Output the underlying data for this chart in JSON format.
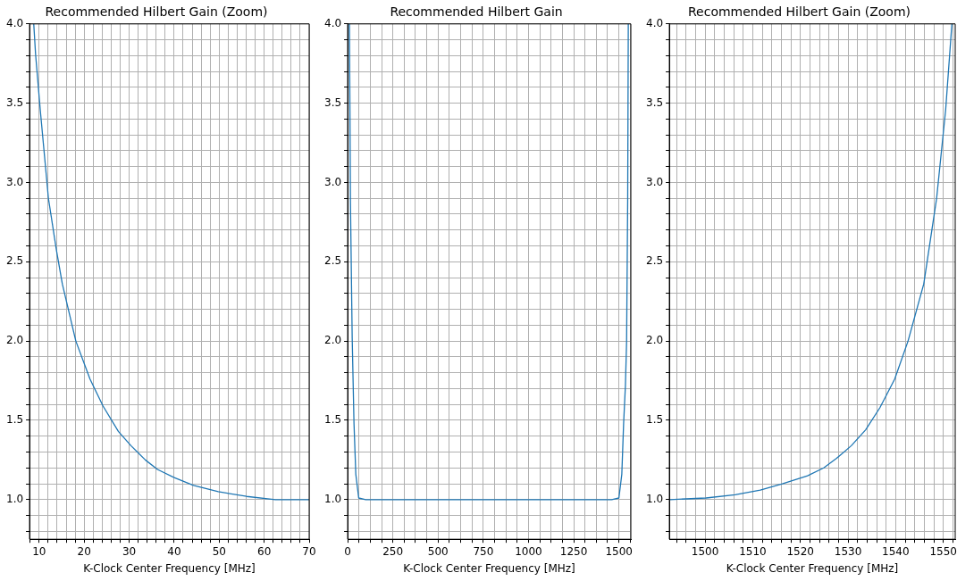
{
  "chart_data": [
    {
      "type": "line",
      "title": "Recommended Hilbert Gain (Zoom)",
      "xlabel": "K-Clock Center Frequency [MHz]",
      "color": "#1f77b4",
      "grid": true,
      "legend": false,
      "marker": "none",
      "line_style": "solid",
      "x": [
        8.8,
        9.2,
        10.24,
        12.06,
        13.8,
        15.15,
        18.15,
        21.3,
        24.2,
        27.6,
        30.4,
        33.6,
        36.3,
        39.9,
        44.3,
        49.8,
        56.1,
        62.5,
        70
      ],
      "values": [
        4.0,
        3.81,
        3.46,
        2.9,
        2.58,
        2.36,
        2.0,
        1.76,
        1.59,
        1.43,
        1.34,
        1.25,
        1.19,
        1.14,
        1.09,
        1.05,
        1.02,
        1.0,
        1.0
      ],
      "xlim": [
        7.87,
        70
      ],
      "xticks": [
        {
          "value": 8,
          "label": null
        },
        10,
        {
          "value": 12,
          "label": null
        },
        {
          "value": 14,
          "label": null
        },
        {
          "value": 16,
          "label": null
        },
        {
          "value": 18,
          "label": null
        },
        20,
        {
          "value": 22,
          "label": null
        },
        {
          "value": 24,
          "label": null
        },
        {
          "value": 26,
          "label": null
        },
        {
          "value": 28,
          "label": null
        },
        30,
        {
          "value": 32,
          "label": null
        },
        {
          "value": 34,
          "label": null
        },
        {
          "value": 36,
          "label": null
        },
        {
          "value": 38,
          "label": null
        },
        40,
        {
          "value": 42,
          "label": null
        },
        {
          "value": 44,
          "label": null
        },
        {
          "value": 46,
          "label": null
        },
        {
          "value": 48,
          "label": null
        },
        50,
        {
          "value": 52,
          "label": null
        },
        {
          "value": 54,
          "label": null
        },
        {
          "value": 56,
          "label": null
        },
        {
          "value": 58,
          "label": null
        },
        60,
        {
          "value": 62,
          "label": null
        },
        {
          "value": 64,
          "label": null
        },
        {
          "value": 66,
          "label": null
        },
        {
          "value": 68,
          "label": null
        },
        70
      ],
      "ylim": [
        0.75,
        4.0
      ],
      "yticks": [
        {
          "value": 0.8,
          "label": null
        },
        {
          "value": 0.9,
          "label": null
        },
        {
          "value": 1.0,
          "label": "1.0"
        },
        {
          "value": 1.1,
          "label": null
        },
        {
          "value": 1.2,
          "label": null
        },
        {
          "value": 1.3,
          "label": null
        },
        {
          "value": 1.4,
          "label": null
        },
        1.5,
        {
          "value": 1.6,
          "label": null
        },
        {
          "value": 1.7,
          "label": null
        },
        {
          "value": 1.8,
          "label": null
        },
        {
          "value": 1.9,
          "label": null
        },
        {
          "value": 2.0,
          "label": "2.0"
        },
        {
          "value": 2.1,
          "label": null
        },
        {
          "value": 2.2,
          "label": null
        },
        {
          "value": 2.3,
          "label": null
        },
        {
          "value": 2.4,
          "label": null
        },
        2.5,
        {
          "value": 2.6,
          "label": null
        },
        {
          "value": 2.7,
          "label": null
        },
        {
          "value": 2.8,
          "label": null
        },
        {
          "value": 2.9,
          "label": null
        },
        {
          "value": 3.0,
          "label": "3.0"
        },
        {
          "value": 3.1,
          "label": null
        },
        {
          "value": 3.2,
          "label": null
        },
        {
          "value": 3.3,
          "label": null
        },
        {
          "value": 3.4,
          "label": null
        },
        3.5,
        {
          "value": 3.6,
          "label": null
        },
        {
          "value": 3.7,
          "label": null
        },
        {
          "value": 3.8,
          "label": null
        },
        {
          "value": 3.9,
          "label": null
        },
        {
          "value": 4.0,
          "label": "4.0"
        }
      ]
    },
    {
      "type": "line",
      "title": "Recommended Hilbert Gain",
      "xlabel": "K-Clock Center Frequency [MHz]",
      "color": "#1f77b4",
      "grid": true,
      "legend": false,
      "marker": "none",
      "line_style": "solid",
      "x": [
        9.8,
        15.4,
        25,
        35,
        45,
        61,
        100,
        140,
        180,
        220,
        260,
        300,
        340,
        380,
        420,
        460,
        500,
        540,
        580,
        620,
        660,
        700,
        740,
        780,
        820,
        860,
        900,
        940,
        980,
        1020,
        1060,
        1100,
        1140,
        1180,
        1220,
        1260,
        1300,
        1340,
        1380,
        1420,
        1460,
        1500,
        1516,
        1526,
        1536,
        1542.6,
        1548.6,
        1551.8
      ],
      "values": [
        4.0,
        2.88,
        2.02,
        1.48,
        1.16,
        1.01,
        1.0,
        1.0,
        1.0,
        1.0,
        1.0,
        1.0,
        1.0,
        1.0,
        1.0,
        1.0,
        1.0,
        1.0,
        1.0,
        1.0,
        1.0,
        1.0,
        1.0,
        1.0,
        1.0,
        1.0,
        1.0,
        1.0,
        1.0,
        1.0,
        1.0,
        1.0,
        1.0,
        1.0,
        1.0,
        1.0,
        1.0,
        1.0,
        1.0,
        1.0,
        1.0,
        1.01,
        1.16,
        1.48,
        1.72,
        2.0,
        2.9,
        4.0
      ],
      "xlim": [
        0,
        1566
      ],
      "xticks": [
        0,
        {
          "value": 62.5,
          "label": null
        },
        {
          "value": 125,
          "label": null
        },
        {
          "value": 187.5,
          "label": null
        },
        250,
        {
          "value": 312.5,
          "label": null
        },
        {
          "value": 375,
          "label": null
        },
        {
          "value": 437.5,
          "label": null
        },
        500,
        {
          "value": 562.5,
          "label": null
        },
        {
          "value": 625,
          "label": null
        },
        {
          "value": 687.5,
          "label": null
        },
        750,
        {
          "value": 812.5,
          "label": null
        },
        {
          "value": 875,
          "label": null
        },
        {
          "value": 937.5,
          "label": null
        },
        1000,
        {
          "value": 1062.5,
          "label": null
        },
        {
          "value": 1125,
          "label": null
        },
        {
          "value": 1187.5,
          "label": null
        },
        1250,
        {
          "value": 1312.5,
          "label": null
        },
        {
          "value": 1375,
          "label": null
        },
        {
          "value": 1437.5,
          "label": null
        },
        1500,
        {
          "value": 1562.5,
          "label": null
        }
      ],
      "ylim": [
        0.75,
        4.0
      ],
      "yticks": [
        {
          "value": 0.8,
          "label": null
        },
        {
          "value": 0.9,
          "label": null
        },
        {
          "value": 1.0,
          "label": "1.0"
        },
        {
          "value": 1.1,
          "label": null
        },
        {
          "value": 1.2,
          "label": null
        },
        {
          "value": 1.3,
          "label": null
        },
        {
          "value": 1.4,
          "label": null
        },
        1.5,
        {
          "value": 1.6,
          "label": null
        },
        {
          "value": 1.7,
          "label": null
        },
        {
          "value": 1.8,
          "label": null
        },
        {
          "value": 1.9,
          "label": null
        },
        {
          "value": 2.0,
          "label": "2.0"
        },
        {
          "value": 2.1,
          "label": null
        },
        {
          "value": 2.2,
          "label": null
        },
        {
          "value": 2.3,
          "label": null
        },
        {
          "value": 2.4,
          "label": null
        },
        2.5,
        {
          "value": 2.6,
          "label": null
        },
        {
          "value": 2.7,
          "label": null
        },
        {
          "value": 2.8,
          "label": null
        },
        {
          "value": 2.9,
          "label": null
        },
        {
          "value": 3.0,
          "label": "3.0"
        },
        {
          "value": 3.1,
          "label": null
        },
        {
          "value": 3.2,
          "label": null
        },
        {
          "value": 3.3,
          "label": null
        },
        {
          "value": 3.4,
          "label": null
        },
        3.5,
        {
          "value": 3.6,
          "label": null
        },
        {
          "value": 3.7,
          "label": null
        },
        {
          "value": 3.8,
          "label": null
        },
        {
          "value": 3.9,
          "label": null
        },
        {
          "value": 4.0,
          "label": "4.0"
        }
      ]
    },
    {
      "type": "line",
      "title": "Recommended Hilbert Gain (Zoom)",
      "xlabel": "K-Clock Center Frequency [MHz]",
      "color": "#1f77b4",
      "grid": true,
      "legend": false,
      "marker": "none",
      "line_style": "solid",
      "x": [
        1492.6,
        1500.2,
        1506.3,
        1511.6,
        1516.2,
        1521.5,
        1524.9,
        1527.6,
        1530.7,
        1533.7,
        1536.7,
        1539.8,
        1542.6,
        1545.9,
        1548.6,
        1550.5,
        1551.8
      ],
      "values": [
        1.0,
        1.01,
        1.03,
        1.06,
        1.1,
        1.15,
        1.2,
        1.26,
        1.34,
        1.44,
        1.58,
        1.76,
        2.0,
        2.36,
        2.9,
        3.46,
        4.0
      ],
      "xlim": [
        1492.5,
        1552.5
      ],
      "xticks": [
        {
          "value": 1494,
          "label": null
        },
        {
          "value": 1496,
          "label": null
        },
        {
          "value": 1498,
          "label": null
        },
        1500,
        {
          "value": 1502,
          "label": null
        },
        {
          "value": 1504,
          "label": null
        },
        {
          "value": 1506,
          "label": null
        },
        {
          "value": 1508,
          "label": null
        },
        1510,
        {
          "value": 1512,
          "label": null
        },
        {
          "value": 1514,
          "label": null
        },
        {
          "value": 1516,
          "label": null
        },
        {
          "value": 1518,
          "label": null
        },
        1520,
        {
          "value": 1522,
          "label": null
        },
        {
          "value": 1524,
          "label": null
        },
        {
          "value": 1526,
          "label": null
        },
        {
          "value": 1528,
          "label": null
        },
        1530,
        {
          "value": 1532,
          "label": null
        },
        {
          "value": 1534,
          "label": null
        },
        {
          "value": 1536,
          "label": null
        },
        {
          "value": 1538,
          "label": null
        },
        1540,
        {
          "value": 1542,
          "label": null
        },
        {
          "value": 1544,
          "label": null
        },
        {
          "value": 1546,
          "label": null
        },
        {
          "value": 1548,
          "label": null
        },
        1550,
        {
          "value": 1552,
          "label": null
        }
      ],
      "ylim": [
        0.75,
        4.0
      ],
      "yticks": [
        {
          "value": 0.8,
          "label": null
        },
        {
          "value": 0.9,
          "label": null
        },
        {
          "value": 1.0,
          "label": "1.0"
        },
        {
          "value": 1.1,
          "label": null
        },
        {
          "value": 1.2,
          "label": null
        },
        {
          "value": 1.3,
          "label": null
        },
        {
          "value": 1.4,
          "label": null
        },
        1.5,
        {
          "value": 1.6,
          "label": null
        },
        {
          "value": 1.7,
          "label": null
        },
        {
          "value": 1.8,
          "label": null
        },
        {
          "value": 1.9,
          "label": null
        },
        {
          "value": 2.0,
          "label": "2.0"
        },
        {
          "value": 2.1,
          "label": null
        },
        {
          "value": 2.2,
          "label": null
        },
        {
          "value": 2.3,
          "label": null
        },
        {
          "value": 2.4,
          "label": null
        },
        2.5,
        {
          "value": 2.6,
          "label": null
        },
        {
          "value": 2.7,
          "label": null
        },
        {
          "value": 2.8,
          "label": null
        },
        {
          "value": 2.9,
          "label": null
        },
        {
          "value": 3.0,
          "label": "3.0"
        },
        {
          "value": 3.1,
          "label": null
        },
        {
          "value": 3.2,
          "label": null
        },
        {
          "value": 3.3,
          "label": null
        },
        {
          "value": 3.4,
          "label": null
        },
        3.5,
        {
          "value": 3.6,
          "label": null
        },
        {
          "value": 3.7,
          "label": null
        },
        {
          "value": 3.8,
          "label": null
        },
        {
          "value": 3.9,
          "label": null
        },
        {
          "value": 4.0,
          "label": "4.0"
        }
      ]
    }
  ]
}
